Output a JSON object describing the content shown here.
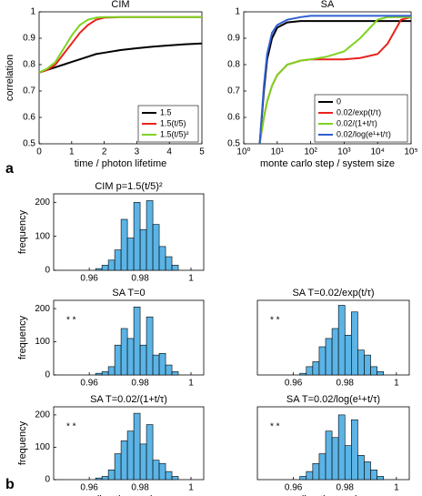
{
  "panel_labels": [
    "a",
    "b"
  ],
  "chart_data": [
    {
      "type": "line",
      "title": "CIM",
      "x_label": "time / photon lifetime",
      "y_label": "correlation",
      "x": [
        0,
        0.25,
        0.5,
        0.75,
        1,
        1.25,
        1.5,
        1.75,
        2,
        2.5,
        3,
        3.5,
        4,
        4.5,
        5
      ],
      "xlim": [
        0,
        5
      ],
      "xticks": [
        0,
        1,
        2,
        3,
        4,
        5
      ],
      "ylim": [
        0.5,
        1
      ],
      "yticks": [
        0.5,
        0.6,
        0.7,
        0.8,
        0.9,
        1
      ],
      "legend": "lower right",
      "series": [
        {
          "name": "1.5",
          "color": "#000000",
          "values": [
            0.77,
            0.78,
            0.79,
            0.8,
            0.81,
            0.82,
            0.83,
            0.84,
            0.845,
            0.855,
            0.862,
            0.868,
            0.873,
            0.877,
            0.88
          ]
        },
        {
          "name": "1.5(t/5)",
          "color": "#e8231c",
          "values": [
            0.77,
            0.78,
            0.8,
            0.84,
            0.88,
            0.92,
            0.95,
            0.97,
            0.978,
            0.98,
            0.98,
            0.98,
            0.98,
            0.98,
            0.98
          ]
        },
        {
          "name": "1.5(t/5)²",
          "color": "#7ed321",
          "values": [
            0.77,
            0.785,
            0.81,
            0.86,
            0.91,
            0.95,
            0.97,
            0.978,
            0.98,
            0.98,
            0.98,
            0.98,
            0.98,
            0.98,
            0.98
          ]
        }
      ]
    },
    {
      "type": "line",
      "title": "SA",
      "x_label": "monte carlo step / system size",
      "log_x": true,
      "x": [
        3,
        4,
        5,
        7,
        10,
        20,
        50,
        100,
        300,
        1000,
        3000,
        10000,
        20000,
        50000,
        100000
      ],
      "xlim": [
        1,
        100000
      ],
      "xticks": [
        {
          "value": 1,
          "label": "10⁰"
        },
        {
          "value": 10,
          "label": "10¹"
        },
        {
          "value": 100,
          "label": "10²"
        },
        {
          "value": 1000,
          "label": "10³"
        },
        {
          "value": 10000,
          "label": "10⁴"
        },
        {
          "value": 100000,
          "label": "10⁵"
        }
      ],
      "ylim": [
        0.5,
        1
      ],
      "yticks": [
        0.5,
        0.6,
        0.7,
        0.8,
        0.9,
        1
      ],
      "legend": "lower right",
      "series": [
        {
          "name": "0",
          "color": "#000000",
          "values": [
            0.5,
            0.7,
            0.82,
            0.9,
            0.94,
            0.96,
            0.965,
            0.965,
            0.965,
            0.965,
            0.965,
            0.965,
            0.965,
            0.965,
            0.965
          ]
        },
        {
          "name": "0.02/exp(t/τ)",
          "color": "#e8231c",
          "values": [
            0.5,
            0.6,
            0.66,
            0.72,
            0.76,
            0.8,
            0.815,
            0.82,
            0.82,
            0.82,
            0.825,
            0.84,
            0.88,
            0.97,
            0.98
          ]
        },
        {
          "name": "0.02/(1+t/τ)",
          "color": "#7ed321",
          "values": [
            0.5,
            0.6,
            0.66,
            0.72,
            0.76,
            0.8,
            0.815,
            0.82,
            0.83,
            0.85,
            0.9,
            0.97,
            0.98,
            0.98,
            0.98
          ]
        },
        {
          "name": "0.02/log(e¹+t/τ)",
          "color": "#2f5fd0",
          "values": [
            0.5,
            0.72,
            0.84,
            0.92,
            0.95,
            0.97,
            0.98,
            0.985,
            0.985,
            0.985,
            0.985,
            0.985,
            0.985,
            0.985,
            0.985
          ]
        }
      ]
    },
    {
      "type": "histogram",
      "title": "CIM p=1.5(t/5)²",
      "y_label": "frequency",
      "color": "#5bb4e5",
      "bins": [
        0.9625,
        0.965,
        0.9675,
        0.97,
        0.9725,
        0.975,
        0.9775,
        0.98,
        0.9825,
        0.985,
        0.9875,
        0.99,
        0.9925,
        0.995
      ],
      "values": [
        5,
        15,
        30,
        60,
        150,
        95,
        200,
        120,
        205,
        135,
        70,
        40,
        15
      ],
      "xlim": [
        0.946,
        1.005
      ],
      "xticks": [
        0.96,
        0.98,
        1
      ],
      "ylim": [
        0,
        225
      ],
      "yticks": [
        0,
        100,
        200
      ]
    },
    {
      "type": "histogram",
      "title": "SA T=0",
      "y_label": "frequency",
      "annotation": "* *",
      "color": "#5bb4e5",
      "bins": [
        0.9625,
        0.965,
        0.9675,
        0.97,
        0.9725,
        0.975,
        0.9775,
        0.98,
        0.9825,
        0.985,
        0.9875,
        0.99,
        0.9925,
        0.995
      ],
      "values": [
        5,
        10,
        25,
        90,
        140,
        110,
        205,
        90,
        175,
        60,
        65,
        30,
        10
      ],
      "xlim": [
        0.946,
        1.005
      ],
      "xticks": [
        0.96,
        0.98,
        1
      ],
      "ylim": [
        0,
        225
      ],
      "yticks": [
        0,
        100,
        200
      ]
    },
    {
      "type": "histogram",
      "title": "SA T=0.02/exp(t/τ)",
      "annotation": "* *",
      "color": "#5bb4e5",
      "bins": [
        0.9625,
        0.965,
        0.9675,
        0.97,
        0.9725,
        0.975,
        0.9775,
        0.98,
        0.9825,
        0.985,
        0.9875,
        0.99,
        0.9925,
        0.995
      ],
      "values": [
        5,
        25,
        40,
        85,
        110,
        140,
        210,
        120,
        190,
        75,
        60,
        25,
        10
      ],
      "xlim": [
        0.946,
        1.005
      ],
      "xticks": [
        0.96,
        0.98,
        1
      ],
      "ylim": [
        0,
        225
      ]
    },
    {
      "type": "histogram",
      "title": "SA T=0.02/(1+t/τ)",
      "y_label": "frequency",
      "x_label": "direction cosine",
      "annotation": "* *",
      "color": "#5bb4e5",
      "bins": [
        0.9625,
        0.965,
        0.9675,
        0.97,
        0.9725,
        0.975,
        0.9775,
        0.98,
        0.9825,
        0.985,
        0.9875,
        0.99,
        0.9925,
        0.995
      ],
      "values": [
        5,
        10,
        30,
        80,
        120,
        150,
        205,
        110,
        170,
        60,
        50,
        25,
        10
      ],
      "xlim": [
        0.946,
        1.005
      ],
      "xticks": [
        0.96,
        0.98,
        1
      ],
      "ylim": [
        0,
        225
      ],
      "yticks": [
        0,
        100,
        200
      ]
    },
    {
      "type": "histogram",
      "title": "SA T=0.02/log(e¹+t/τ)",
      "x_label": "direction cosine",
      "annotation": "* *",
      "color": "#5bb4e5",
      "bins": [
        0.9625,
        0.965,
        0.9675,
        0.97,
        0.9725,
        0.975,
        0.9775,
        0.98,
        0.9825,
        0.985,
        0.9875,
        0.99,
        0.9925,
        0.995
      ],
      "values": [
        10,
        25,
        50,
        80,
        150,
        130,
        200,
        105,
        185,
        75,
        55,
        30,
        10
      ],
      "xlim": [
        0.946,
        1.005
      ],
      "xticks": [
        0.96,
        0.98,
        1
      ],
      "ylim": [
        0,
        225
      ]
    }
  ]
}
